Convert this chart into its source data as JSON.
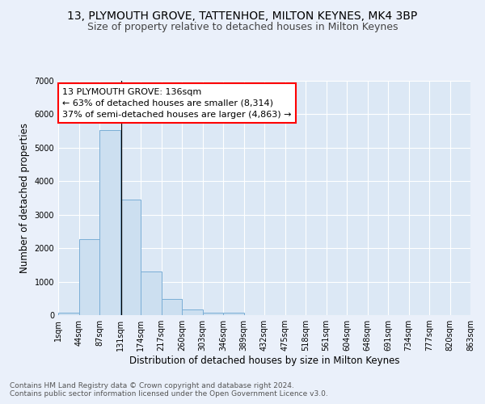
{
  "title1": "13, PLYMOUTH GROVE, TATTENHOE, MILTON KEYNES, MK4 3BP",
  "title2": "Size of property relative to detached houses in Milton Keynes",
  "xlabel": "Distribution of detached houses by size in Milton Keynes",
  "ylabel": "Number of detached properties",
  "footer1": "Contains HM Land Registry data © Crown copyright and database right 2024.",
  "footer2": "Contains public sector information licensed under the Open Government Licence v3.0.",
  "annotation_line1": "13 PLYMOUTH GROVE: 136sqm",
  "annotation_line2": "← 63% of detached houses are smaller (8,314)",
  "annotation_line3": "37% of semi-detached houses are larger (4,863) →",
  "bar_values": [
    70,
    2270,
    5520,
    3440,
    1300,
    480,
    160,
    80,
    70,
    0,
    0,
    0,
    0,
    0,
    0,
    0,
    0,
    0,
    0
  ],
  "bar_color": "#ccdff0",
  "bar_edge_color": "#7aaed6",
  "bar_width": 1.0,
  "x_labels": [
    "1sqm",
    "44sqm",
    "87sqm",
    "131sqm",
    "174sqm",
    "217sqm",
    "260sqm",
    "303sqm",
    "346sqm",
    "389sqm",
    "432sqm",
    "475sqm",
    "518sqm",
    "561sqm",
    "604sqm",
    "648sqm",
    "691sqm",
    "734sqm",
    "777sqm",
    "820sqm",
    "863sqm"
  ],
  "ylim": [
    0,
    7000
  ],
  "yticks": [
    0,
    1000,
    2000,
    3000,
    4000,
    5000,
    6000,
    7000
  ],
  "property_line_x": 3.07,
  "background_color": "#dce8f5",
  "grid_color": "#ffffff",
  "title1_fontsize": 10,
  "title2_fontsize": 9,
  "xlabel_fontsize": 8.5,
  "ylabel_fontsize": 8.5,
  "annotation_fontsize": 8,
  "tick_fontsize": 7,
  "footer_fontsize": 6.5
}
